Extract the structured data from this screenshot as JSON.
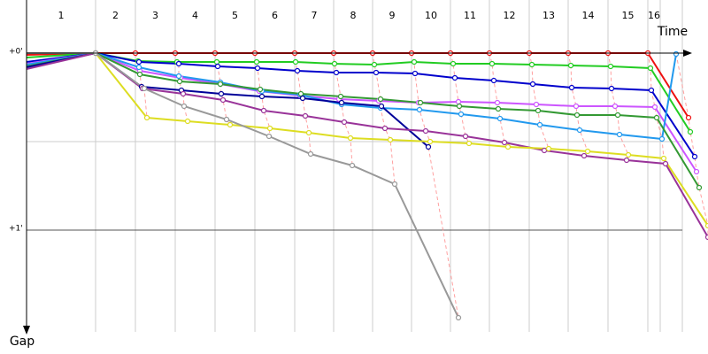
{
  "chart_data": {
    "type": "line",
    "x_label": "Time",
    "y_label": "Gap",
    "categories": [
      "1",
      "2",
      "3",
      "4",
      "5",
      "6",
      "7",
      "8",
      "9",
      "10",
      "11",
      "12",
      "13",
      "14",
      "15",
      "16"
    ],
    "xlim": [
      0,
      1540
    ],
    "xticks": [
      0,
      156,
      246,
      336,
      426,
      516,
      606,
      694,
      782,
      870,
      958,
      1046,
      1136,
      1224,
      1314,
      1404,
      1432,
      1482
    ],
    "ylim": [
      -0.3,
      1.575
    ],
    "yticks": [
      {
        "value": 0,
        "label": "+0'"
      },
      {
        "value": 1,
        "label": "+1'"
      }
    ],
    "minor_yticks": [
      0.5
    ],
    "grid": true,
    "series": [
      {
        "color": "#ee1111",
        "x": [
          0,
          156,
          246,
          336,
          426,
          516,
          606,
          694,
          782,
          870,
          958,
          1046,
          1136,
          1224,
          1314,
          1404,
          1496
        ],
        "values": [
          0.01,
          0,
          0,
          0,
          0,
          0,
          0,
          0,
          0,
          0,
          0,
          0,
          0,
          0,
          0,
          0,
          0.365
        ]
      },
      {
        "color": "#22cc22",
        "x": [
          0,
          156,
          252,
          340,
          430,
          520,
          608,
          696,
          786,
          876,
          964,
          1052,
          1142,
          1230,
          1320,
          1410,
          1500
        ],
        "values": [
          0.025,
          0,
          0.045,
          0.05,
          0.05,
          0.05,
          0.05,
          0.06,
          0.065,
          0.05,
          0.06,
          0.06,
          0.065,
          0.07,
          0.075,
          0.085,
          0.445
        ]
      },
      {
        "color": "#0000cc",
        "x": [
          0,
          156,
          254,
          344,
          432,
          522,
          612,
          700,
          790,
          878,
          968,
          1056,
          1144,
          1232,
          1322,
          1412,
          1510
        ],
        "values": [
          0.05,
          0,
          0.05,
          0.06,
          0.075,
          0.085,
          0.1,
          0.11,
          0.11,
          0.115,
          0.14,
          0.155,
          0.175,
          0.195,
          0.2,
          0.21,
          0.585
        ]
      },
      {
        "color": "#cc55ff",
        "x": [
          0,
          156,
          256,
          348,
          438,
          526,
          618,
          706,
          796,
          886,
          976,
          1064,
          1152,
          1242,
          1330,
          1420,
          1514
        ],
        "values": [
          0.06,
          0,
          0.1,
          0.14,
          0.175,
          0.215,
          0.24,
          0.26,
          0.27,
          0.28,
          0.275,
          0.28,
          0.29,
          0.3,
          0.3,
          0.305,
          0.67
        ]
      },
      {
        "color": "#2299ee",
        "x": [
          0,
          156,
          254,
          344,
          438,
          532,
          618,
          712,
          800,
          888,
          982,
          1070,
          1160,
          1250,
          1340,
          1436,
          1468
        ],
        "values": [
          0.065,
          0,
          0.08,
          0.13,
          0.165,
          0.215,
          0.235,
          0.29,
          0.31,
          0.32,
          0.345,
          0.37,
          0.405,
          0.435,
          0.46,
          0.485,
          0.005
        ]
      },
      {
        "color": "#339933",
        "x": [
          0,
          156,
          256,
          346,
          438,
          528,
          620,
          710,
          800,
          890,
          978,
          1066,
          1156,
          1244,
          1336,
          1424,
          1520
        ],
        "values": [
          0.075,
          0,
          0.12,
          0.16,
          0.175,
          0.205,
          0.23,
          0.245,
          0.26,
          0.28,
          0.3,
          0.315,
          0.325,
          0.35,
          0.35,
          0.365,
          0.76
        ]
      },
      {
        "color": "#000099",
        "x": [
          0,
          156,
          260,
          350,
          440,
          532,
          624,
          712,
          802,
          908
        ],
        "values": [
          0.08,
          0,
          0.19,
          0.21,
          0.23,
          0.245,
          0.255,
          0.28,
          0.3,
          0.53
        ]
      },
      {
        "color": "#993399",
        "x": [
          0,
          156,
          262,
          354,
          444,
          536,
          630,
          718,
          810,
          902,
          992,
          1080,
          1170,
          1260,
          1356,
          1444,
          1540
        ],
        "values": [
          0.09,
          0,
          0.2,
          0.23,
          0.265,
          0.325,
          0.355,
          0.39,
          0.425,
          0.44,
          0.47,
          0.505,
          0.55,
          0.58,
          0.605,
          0.625,
          1.04
        ]
      },
      {
        "color": "#dddd22",
        "x": [
          0,
          156,
          272,
          364,
          460,
          550,
          638,
          732,
          822,
          912,
          1000,
          1088,
          1180,
          1268,
          1360,
          1440,
          1540
        ],
        "values": [
          0,
          0,
          0.365,
          0.385,
          0.405,
          0.425,
          0.45,
          0.48,
          0.49,
          0.5,
          0.51,
          0.53,
          0.54,
          0.555,
          0.575,
          0.595,
          0.975
        ]
      },
      {
        "color": "#999999",
        "x": [
          0,
          156,
          266,
          356,
          452,
          548,
          642,
          736,
          832,
          976
        ],
        "values": [
          0,
          0,
          0.2,
          0.3,
          0.375,
          0.47,
          0.57,
          0.635,
          0.74,
          1.495
        ]
      }
    ]
  }
}
